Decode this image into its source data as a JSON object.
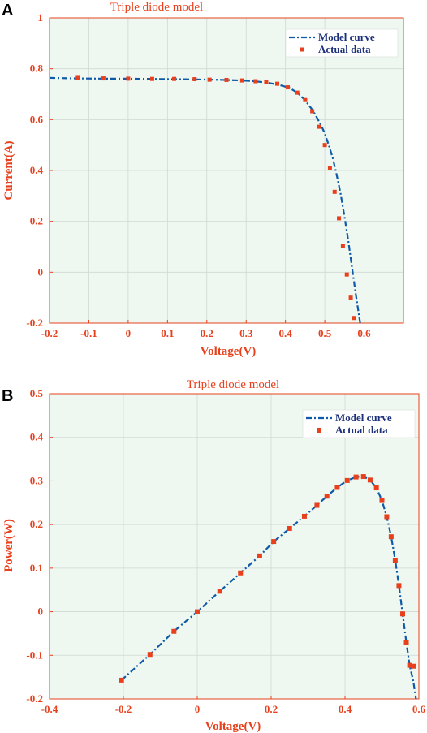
{
  "chart_data": [
    {
      "panel_letter": "A",
      "type": "line",
      "title": "Triple diode model",
      "xlabel": "Voltage(V)",
      "ylabel": "Current(A)",
      "xlim": [
        -0.2,
        0.7
      ],
      "ylim": [
        -0.2,
        1.0
      ],
      "xticks": [
        -0.2,
        -0.1,
        0,
        0.1,
        0.2,
        0.3,
        0.4,
        0.5,
        0.6
      ],
      "yticks": [
        -0.2,
        0,
        0.2,
        0.4,
        0.6,
        0.8,
        1
      ],
      "xtick_labels": [
        "-0.2",
        "-0.1",
        "0",
        "0.1",
        "0.2",
        "0.3",
        "0.4",
        "0.5",
        "0.6"
      ],
      "ytick_labels": [
        "-0.2",
        "0",
        "0.2",
        "0.4",
        "0.6",
        "0.8",
        "1"
      ],
      "grid": true,
      "legend_position": "top-right",
      "series": [
        {
          "name": "Model curve",
          "style": "dash-dot line",
          "color": "#0f5aa8",
          "x": [
            -0.2,
            -0.13,
            -0.06,
            0.0,
            0.06,
            0.12,
            0.17,
            0.21,
            0.25,
            0.29,
            0.32,
            0.35,
            0.38,
            0.41,
            0.43,
            0.45,
            0.47,
            0.49,
            0.5,
            0.51,
            0.52,
            0.53,
            0.54,
            0.55,
            0.56,
            0.57,
            0.58,
            0.59
          ],
          "y": [
            0.764,
            0.762,
            0.761,
            0.761,
            0.76,
            0.759,
            0.758,
            0.757,
            0.756,
            0.754,
            0.751,
            0.746,
            0.738,
            0.725,
            0.706,
            0.676,
            0.635,
            0.58,
            0.545,
            0.5,
            0.45,
            0.385,
            0.31,
            0.22,
            0.12,
            0.01,
            -0.1,
            -0.2
          ]
        },
        {
          "name": "Actual data",
          "style": "square markers",
          "color": "#e8401c",
          "x": [
            -0.128,
            -0.063,
            0.0,
            0.061,
            0.117,
            0.169,
            0.207,
            0.25,
            0.29,
            0.324,
            0.351,
            0.379,
            0.406,
            0.43,
            0.45,
            0.468,
            0.485,
            0.5,
            0.513,
            0.525,
            0.536,
            0.546,
            0.556,
            0.566,
            0.575
          ],
          "y": [
            0.764,
            0.762,
            0.761,
            0.76,
            0.76,
            0.759,
            0.757,
            0.756,
            0.754,
            0.751,
            0.748,
            0.741,
            0.727,
            0.706,
            0.677,
            0.633,
            0.572,
            0.5,
            0.41,
            0.316,
            0.212,
            0.103,
            -0.009,
            -0.1,
            -0.18
          ]
        }
      ]
    },
    {
      "panel_letter": "B",
      "type": "line",
      "title": "Triple diode model",
      "xlabel": "Voltage(V)",
      "ylabel": "Power(W)",
      "xlim": [
        -0.4,
        0.6
      ],
      "ylim": [
        -0.2,
        0.5
      ],
      "xticks": [
        -0.4,
        -0.2,
        0,
        0.2,
        0.4,
        0.6
      ],
      "yticks": [
        -0.2,
        -0.1,
        0,
        0.1,
        0.2,
        0.3,
        0.4,
        0.5
      ],
      "xtick_labels": [
        "-0.4",
        "-0.2",
        "0",
        "0.2",
        "0.4",
        "0.6"
      ],
      "ytick_labels": [
        "-0.2",
        "-0.1",
        "0",
        "0.1",
        "0.2",
        "0.3",
        "0.4",
        "0.5"
      ],
      "grid": true,
      "legend_position": "top-right",
      "series": [
        {
          "name": "Model curve",
          "style": "dash-dot line",
          "color": "#0f5aa8",
          "x": [
            -0.205,
            -0.128,
            -0.063,
            0.0,
            0.061,
            0.117,
            0.169,
            0.207,
            0.25,
            0.29,
            0.324,
            0.351,
            0.379,
            0.406,
            0.43,
            0.45,
            0.468,
            0.485,
            0.5,
            0.513,
            0.525,
            0.536,
            0.546,
            0.556,
            0.566,
            0.575,
            0.585,
            0.592
          ],
          "y": [
            -0.157,
            -0.098,
            -0.045,
            0.0,
            0.047,
            0.089,
            0.128,
            0.161,
            0.191,
            0.219,
            0.244,
            0.265,
            0.285,
            0.301,
            0.309,
            0.31,
            0.302,
            0.284,
            0.255,
            0.218,
            0.172,
            0.118,
            0.06,
            -0.005,
            -0.07,
            -0.123,
            -0.16,
            -0.2
          ]
        },
        {
          "name": "Actual data",
          "style": "square markers",
          "color": "#e8401c",
          "x": [
            -0.205,
            -0.128,
            -0.063,
            0.0,
            0.061,
            0.117,
            0.169,
            0.207,
            0.25,
            0.29,
            0.324,
            0.351,
            0.379,
            0.406,
            0.43,
            0.45,
            0.468,
            0.485,
            0.5,
            0.513,
            0.525,
            0.536,
            0.546,
            0.556,
            0.566,
            0.575,
            0.585
          ],
          "y": [
            -0.157,
            -0.098,
            -0.045,
            0.0,
            0.047,
            0.089,
            0.128,
            0.161,
            0.191,
            0.219,
            0.244,
            0.265,
            0.285,
            0.301,
            0.309,
            0.31,
            0.302,
            0.284,
            0.255,
            0.218,
            0.172,
            0.118,
            0.06,
            -0.005,
            -0.07,
            -0.123,
            -0.125
          ]
        }
      ]
    }
  ],
  "colors": {
    "plot_background": "#eef8f0",
    "grid": "#cfd8d2",
    "frame": "#e8401c",
    "text": "#e8401c",
    "legend_text": "#1b2f7a",
    "model_curve": "#0f5aa8",
    "actual_data": "#e8401c"
  }
}
